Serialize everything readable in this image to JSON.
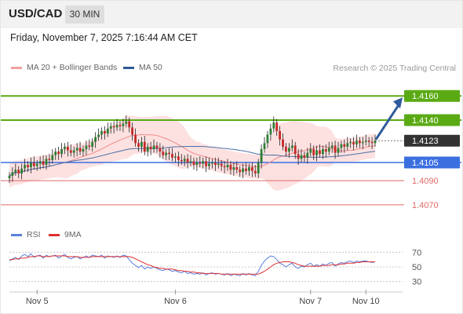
{
  "header": {
    "symbol": "USD/CAD",
    "timeframe": "30 MIN"
  },
  "datetime": "Friday, November 7, 2025 7:16:44 AM CET",
  "legend": {
    "bb_label": "MA 20 + Bollinger Bands",
    "ma50_label": "MA 50",
    "rsi_label": "RSI",
    "rsi_ma_label": "9MA",
    "credit": "Research © 2025 Trading Central"
  },
  "colors": {
    "up": "#2e7d32",
    "down": "#c62828",
    "wick": "#222222",
    "bb_fill": "#fddcdc",
    "ma20": "#f08a8a",
    "ma50": "#4a6fa5",
    "resistance": "#5aaa14",
    "pivot": "#3b6fe0",
    "support": "#e06a6a",
    "arrow": "#2f5a9e",
    "rsi": "#5b7fdc",
    "rsi_ma": "#e03030",
    "current": "#333333"
  },
  "chart_data": [
    {
      "type": "candlestick",
      "title": "USD/CAD",
      "timeframe": "30 MIN",
      "ylim": [
        1.4055,
        1.4177
      ],
      "x_labels": [
        "Nov 5",
        "Nov 6",
        "Nov 7",
        "Nov 10"
      ],
      "current_price": 1.4123,
      "levels": [
        {
          "value": 1.416,
          "label": "1.4160",
          "kind": "resistance"
        },
        {
          "value": 1.414,
          "label": "1.4140",
          "kind": "resistance"
        },
        {
          "value": 1.4123,
          "label": "1.4123",
          "kind": "current"
        },
        {
          "value": 1.4105,
          "label": "1.4105",
          "kind": "pivot"
        },
        {
          "value": 1.409,
          "label": "1.4090",
          "kind": "support"
        },
        {
          "value": 1.407,
          "label": "1.4070",
          "kind": "support"
        }
      ],
      "projection": {
        "from": 1.4124,
        "to": 1.416
      },
      "close": [
        1.4094,
        1.4097,
        1.4099,
        1.4096,
        1.41,
        1.4103,
        1.4101,
        1.4105,
        1.4102,
        1.4104,
        1.4106,
        1.4103,
        1.4108,
        1.4107,
        1.4111,
        1.4114,
        1.4112,
        1.4116,
        1.4118,
        1.4115,
        1.4113,
        1.4115,
        1.4117,
        1.4114,
        1.4116,
        1.4119,
        1.4118,
        1.4122,
        1.4126,
        1.4128,
        1.4131,
        1.4129,
        1.4133,
        1.4135,
        1.4134,
        1.4136,
        1.4135,
        1.4137,
        1.4139,
        1.4134,
        1.4128,
        1.4121,
        1.4118,
        1.4122,
        1.4114,
        1.4118,
        1.4116,
        1.4119,
        1.4117,
        1.4114,
        1.4111,
        1.4113,
        1.4112,
        1.4109,
        1.411,
        1.4107,
        1.4106,
        1.4108,
        1.4105,
        1.4106,
        1.4103,
        1.4105,
        1.4104,
        1.4106,
        1.4102,
        1.4104,
        1.4105,
        1.4103,
        1.4104,
        1.4102,
        1.4101,
        1.4103,
        1.4099,
        1.4101,
        1.4099,
        1.4097,
        1.41,
        1.4098,
        1.4101,
        1.4098,
        1.4096,
        1.4105,
        1.4116,
        1.4121,
        1.4128,
        1.4133,
        1.4138,
        1.4131,
        1.4124,
        1.4118,
        1.4114,
        1.4117,
        1.4119,
        1.4112,
        1.4108,
        1.4111,
        1.4109,
        1.4113,
        1.4116,
        1.4111,
        1.4115,
        1.4112,
        1.4116,
        1.4114,
        1.4117,
        1.4119,
        1.4113,
        1.4117,
        1.412,
        1.4118,
        1.4121,
        1.4122,
        1.412,
        1.4123,
        1.4121,
        1.4122,
        1.4123,
        1.4122,
        1.4121,
        1.4123
      ]
    },
    {
      "type": "line",
      "title": "RSI",
      "ylim": [
        20,
        80
      ],
      "y_ticks": [
        70,
        50,
        30
      ],
      "series": [
        {
          "name": "RSI",
          "values": [
            58,
            61,
            63,
            60,
            65,
            67,
            64,
            68,
            63,
            65,
            66,
            62,
            66,
            64,
            65,
            66,
            62,
            65,
            67,
            63,
            61,
            63,
            64,
            61,
            63,
            65,
            63,
            66,
            65,
            64,
            66,
            62,
            65,
            64,
            63,
            65,
            63,
            66,
            65,
            60,
            55,
            52,
            49,
            52,
            47,
            50,
            48,
            50,
            48,
            46,
            45,
            47,
            46,
            44,
            45,
            43,
            42,
            44,
            41,
            42,
            40,
            41,
            40,
            42,
            39,
            41,
            42,
            40,
            41,
            40,
            39,
            41,
            38,
            40,
            39,
            38,
            41,
            39,
            41,
            39,
            38,
            44,
            52,
            58,
            62,
            65,
            64,
            60,
            55,
            53,
            50,
            53,
            55,
            50,
            48,
            51,
            50,
            53,
            55,
            51,
            53,
            51,
            54,
            52,
            55,
            56,
            51,
            54,
            56,
            55,
            57,
            58,
            56,
            58,
            57,
            58,
            58,
            57,
            56,
            57
          ]
        },
        {
          "name": "9MA",
          "values": [
            60,
            60,
            61,
            61,
            62,
            62,
            63,
            64,
            64,
            65,
            65,
            64,
            64,
            64,
            65,
            65,
            65,
            65,
            65,
            64,
            64,
            64,
            64,
            63,
            63,
            63,
            63,
            64,
            64,
            64,
            64,
            64,
            64,
            64,
            64,
            64,
            64,
            64,
            64,
            64,
            63,
            61,
            59,
            57,
            55,
            53,
            52,
            50,
            49,
            48,
            48,
            47,
            47,
            47,
            46,
            45,
            45,
            44,
            44,
            43,
            43,
            42,
            42,
            41,
            41,
            41,
            41,
            41,
            41,
            40,
            40,
            40,
            40,
            40,
            40,
            40,
            40,
            40,
            40,
            40,
            40,
            40,
            42,
            44,
            47,
            50,
            53,
            55,
            56,
            57,
            57,
            57,
            56,
            55,
            53,
            52,
            51,
            51,
            51,
            51,
            51,
            51,
            52,
            52,
            52,
            53,
            53,
            53,
            54,
            54,
            55,
            55,
            55,
            56,
            56,
            57,
            57,
            57,
            57,
            57
          ]
        }
      ]
    }
  ]
}
